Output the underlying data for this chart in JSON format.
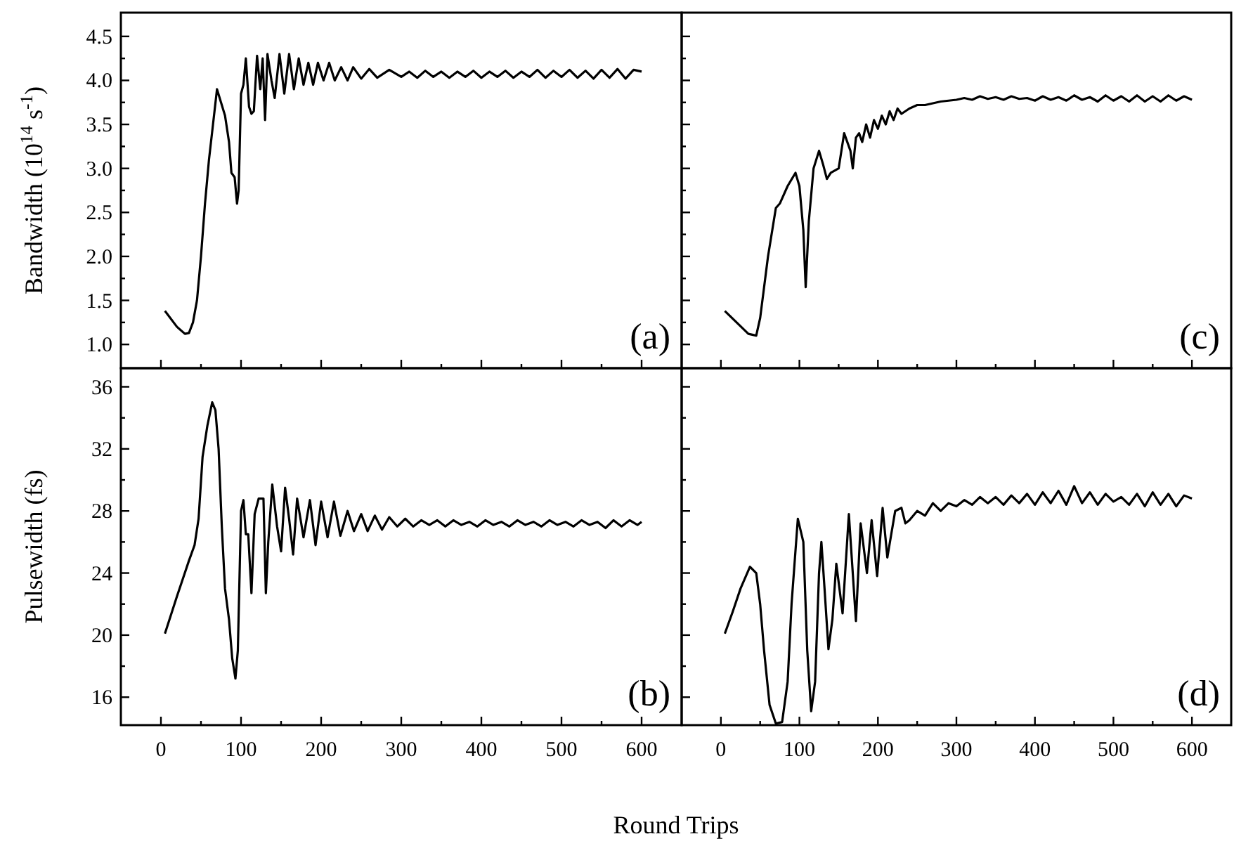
{
  "chart_data": [
    {
      "type": "line",
      "ylabel": "Bandwidth (10$^{14}$ s$^{-1}$)",
      "annotations": [
        "(a)"
      ],
      "tick_labels": "y",
      "x": [
        5,
        20,
        30,
        35,
        40,
        45,
        50,
        55,
        60,
        65,
        70,
        75,
        80,
        85,
        88,
        92,
        95,
        97,
        100,
        103,
        106,
        110,
        113,
        116,
        120,
        124,
        127,
        130,
        133,
        138,
        142,
        148,
        154,
        160,
        166,
        172,
        178,
        184,
        190,
        196,
        203,
        210,
        217,
        225,
        233,
        240,
        250,
        260,
        270,
        285,
        300,
        310,
        320,
        330,
        340,
        350,
        360,
        370,
        380,
        390,
        400,
        410,
        420,
        430,
        440,
        450,
        460,
        470,
        480,
        490,
        500,
        510,
        520,
        530,
        540,
        550,
        560,
        570,
        580,
        590,
        600
      ],
      "series": [
        {
          "color": "#000000",
          "values": [
            1.38,
            1.2,
            1.12,
            1.13,
            1.25,
            1.5,
            2.0,
            2.6,
            3.1,
            3.5,
            3.9,
            3.75,
            3.6,
            3.3,
            2.95,
            2.9,
            2.6,
            2.75,
            3.85,
            3.95,
            4.25,
            3.7,
            3.62,
            3.65,
            4.28,
            3.9,
            4.25,
            3.55,
            4.3,
            4.0,
            3.8,
            4.3,
            3.85,
            4.3,
            3.9,
            4.25,
            3.95,
            4.2,
            3.95,
            4.2,
            4.0,
            4.2,
            4.0,
            4.15,
            4.0,
            4.15,
            4.02,
            4.13,
            4.03,
            4.12,
            4.04,
            4.1,
            4.03,
            4.11,
            4.04,
            4.1,
            4.03,
            4.1,
            4.04,
            4.11,
            4.03,
            4.1,
            4.04,
            4.11,
            4.03,
            4.1,
            4.04,
            4.12,
            4.03,
            4.11,
            4.04,
            4.12,
            4.03,
            4.11,
            4.02,
            4.12,
            4.03,
            4.13,
            4.02,
            4.12,
            4.1
          ]
        }
      ],
      "xlim": [
        -50,
        650
      ],
      "xticks": [
        0,
        {
          "value": 50,
          "label": null
        },
        100,
        {
          "value": 150,
          "label": null
        },
        200,
        {
          "value": 250,
          "label": null
        },
        300,
        {
          "value": 350,
          "label": null
        },
        400,
        {
          "value": 450,
          "label": null
        },
        500,
        {
          "value": 550,
          "label": null
        },
        600
      ],
      "ylim": [
        0.73,
        4.77
      ],
      "yticks": [
        {
          "value": 1,
          "label": "1.0"
        },
        {
          "value": 1.25,
          "label": null
        },
        {
          "value": 1.5,
          "label": "1.5"
        },
        {
          "value": 1.75,
          "label": null
        },
        {
          "value": 2,
          "label": "2.0"
        },
        {
          "value": 2.25,
          "label": null
        },
        {
          "value": 2.5,
          "label": "2.5"
        },
        {
          "value": 2.75,
          "label": null
        },
        {
          "value": 3,
          "label": "3.0"
        },
        {
          "value": 3.25,
          "label": null
        },
        {
          "value": 3.5,
          "label": "3.5"
        },
        {
          "value": 3.75,
          "label": null
        },
        {
          "value": 4,
          "label": "4.0"
        },
        {
          "value": 4.25,
          "label": null
        },
        {
          "value": 4.5,
          "label": "4.5"
        }
      ]
    },
    {
      "type": "line",
      "annotations": [
        "(c)"
      ],
      "tick_labels": false,
      "x": [
        5,
        20,
        35,
        45,
        50,
        60,
        70,
        75,
        85,
        95,
        100,
        105,
        108,
        112,
        118,
        125,
        130,
        135,
        140,
        150,
        157,
        165,
        168,
        172,
        176,
        180,
        185,
        190,
        195,
        200,
        205,
        210,
        215,
        220,
        225,
        230,
        240,
        250,
        260,
        280,
        300,
        310,
        320,
        330,
        340,
        350,
        360,
        370,
        380,
        390,
        400,
        410,
        420,
        430,
        440,
        450,
        460,
        470,
        480,
        490,
        500,
        510,
        520,
        530,
        540,
        550,
        560,
        570,
        580,
        590,
        600
      ],
      "series": [
        {
          "color": "#000000",
          "values": [
            1.38,
            1.25,
            1.12,
            1.1,
            1.3,
            2.0,
            2.55,
            2.6,
            2.8,
            2.95,
            2.8,
            2.3,
            1.65,
            2.4,
            3.0,
            3.2,
            3.05,
            2.88,
            2.95,
            3.0,
            3.4,
            3.2,
            3.0,
            3.35,
            3.4,
            3.3,
            3.5,
            3.35,
            3.55,
            3.45,
            3.6,
            3.5,
            3.65,
            3.55,
            3.68,
            3.62,
            3.68,
            3.72,
            3.72,
            3.76,
            3.78,
            3.8,
            3.78,
            3.82,
            3.79,
            3.81,
            3.78,
            3.82,
            3.79,
            3.8,
            3.77,
            3.82,
            3.78,
            3.81,
            3.77,
            3.83,
            3.78,
            3.81,
            3.76,
            3.83,
            3.77,
            3.82,
            3.76,
            3.83,
            3.76,
            3.82,
            3.76,
            3.83,
            3.77,
            3.82,
            3.78
          ]
        }
      ],
      "xlim": [
        -50,
        650
      ],
      "xticks": [
        0,
        {
          "value": 50,
          "label": null
        },
        100,
        {
          "value": 150,
          "label": null
        },
        200,
        {
          "value": 250,
          "label": null
        },
        300,
        {
          "value": 350,
          "label": null
        },
        400,
        {
          "value": 450,
          "label": null
        },
        500,
        {
          "value": 550,
          "label": null
        },
        600
      ],
      "ylim": [
        0.73,
        4.77
      ],
      "yticks": [
        1,
        {
          "value": 1.25,
          "label": null
        },
        1.5,
        {
          "value": 1.75,
          "label": null
        },
        2,
        {
          "value": 2.25,
          "label": null
        },
        2.5,
        {
          "value": 2.75,
          "label": null
        },
        3,
        {
          "value": 3.25,
          "label": null
        },
        3.5,
        {
          "value": 3.75,
          "label": null
        },
        4,
        {
          "value": 4.25,
          "label": null
        },
        4.5
      ]
    },
    {
      "type": "line",
      "ylabel": "Pulsewidth (fs)",
      "xlabel": "Round Trips",
      "annotations": [
        "(b)"
      ],
      "x": [
        5,
        20,
        35,
        42,
        47,
        52,
        58,
        64,
        68,
        72,
        76,
        80,
        85,
        89,
        93,
        96,
        100,
        103,
        106,
        109,
        113,
        117,
        122,
        128,
        131,
        134,
        139,
        145,
        150,
        155,
        160,
        165,
        170,
        178,
        186,
        193,
        200,
        208,
        216,
        224,
        233,
        241,
        250,
        258,
        267,
        276,
        285,
        295,
        305,
        315,
        325,
        335,
        345,
        355,
        365,
        375,
        385,
        395,
        405,
        415,
        425,
        435,
        445,
        455,
        465,
        475,
        485,
        495,
        505,
        515,
        525,
        535,
        545,
        555,
        565,
        575,
        585,
        595,
        600
      ],
      "series": [
        {
          "color": "#000000",
          "values": [
            20.1,
            22.5,
            24.8,
            25.8,
            27.5,
            31.5,
            33.5,
            35.0,
            34.5,
            32,
            27,
            23,
            21,
            18.5,
            17.2,
            19,
            28,
            28.7,
            26.5,
            26.5,
            22.7,
            27.8,
            28.8,
            28.8,
            22.7,
            26,
            29.7,
            27,
            25.4,
            29.5,
            27.5,
            25.2,
            28.8,
            26.3,
            28.7,
            25.8,
            28.6,
            26.3,
            28.6,
            26.4,
            28.0,
            26.7,
            27.8,
            26.7,
            27.7,
            26.8,
            27.6,
            27.0,
            27.5,
            27.0,
            27.4,
            27.1,
            27.4,
            27.0,
            27.4,
            27.1,
            27.3,
            27.0,
            27.4,
            27.1,
            27.3,
            27.0,
            27.4,
            27.1,
            27.3,
            27.0,
            27.4,
            27.1,
            27.3,
            27.0,
            27.4,
            27.1,
            27.3,
            26.9,
            27.4,
            27.0,
            27.4,
            27.1,
            27.3
          ]
        }
      ],
      "xlim": [
        -50,
        650
      ],
      "xticks": [
        0,
        {
          "value": 50,
          "label": null
        },
        100,
        {
          "value": 150,
          "label": null
        },
        200,
        {
          "value": 250,
          "label": null
        },
        300,
        {
          "value": 350,
          "label": null
        },
        400,
        {
          "value": 450,
          "label": null
        },
        500,
        {
          "value": 550,
          "label": null
        },
        600
      ],
      "ylim": [
        14.2,
        37.2
      ],
      "yticks": [
        16,
        {
          "value": 18,
          "label": null
        },
        20,
        {
          "value": 22,
          "label": null
        },
        24,
        {
          "value": 26,
          "label": null
        },
        28,
        {
          "value": 30,
          "label": null
        },
        32,
        {
          "value": 34,
          "label": null
        },
        36
      ]
    },
    {
      "type": "line",
      "annotations": [
        "(d)"
      ],
      "tick_labels": "x",
      "x": [
        5,
        15,
        25,
        37,
        45,
        50,
        55,
        62,
        70,
        78,
        85,
        90,
        98,
        105,
        110,
        115,
        120,
        125,
        128,
        132,
        137,
        142,
        147,
        155,
        163,
        172,
        178,
        186,
        192,
        199,
        206,
        212,
        222,
        230,
        235,
        240,
        250,
        260,
        270,
        280,
        290,
        300,
        310,
        320,
        330,
        340,
        350,
        360,
        370,
        380,
        390,
        400,
        410,
        420,
        430,
        440,
        450,
        460,
        470,
        480,
        490,
        500,
        510,
        520,
        530,
        540,
        550,
        560,
        570,
        580,
        590,
        600
      ],
      "series": [
        {
          "color": "#000000",
          "values": [
            20.1,
            21.5,
            23,
            24.4,
            24,
            22,
            19,
            15.5,
            14.3,
            14.4,
            17,
            22,
            27.5,
            26,
            19,
            15.1,
            17,
            24,
            26,
            23,
            19.1,
            21,
            24.6,
            21.4,
            27.8,
            20.9,
            27.2,
            24.0,
            27.4,
            23.8,
            28.2,
            25.0,
            28.0,
            28.2,
            27.2,
            27.4,
            28.0,
            27.7,
            28.5,
            28.0,
            28.5,
            28.3,
            28.7,
            28.4,
            28.9,
            28.5,
            28.9,
            28.4,
            29.0,
            28.5,
            29.1,
            28.4,
            29.2,
            28.5,
            29.3,
            28.4,
            29.6,
            28.5,
            29.2,
            28.4,
            29.1,
            28.6,
            28.9,
            28.4,
            29.1,
            28.3,
            29.2,
            28.4,
            29.1,
            28.3,
            29.0,
            28.8
          ]
        }
      ],
      "xlim": [
        -50,
        650
      ],
      "xticks": [
        0,
        {
          "value": 50,
          "label": null
        },
        100,
        {
          "value": 150,
          "label": null
        },
        200,
        {
          "value": 250,
          "label": null
        },
        300,
        {
          "value": 350,
          "label": null
        },
        400,
        {
          "value": 450,
          "label": null
        },
        500,
        {
          "value": 550,
          "label": null
        },
        600
      ],
      "ylim": [
        14.2,
        37.2
      ],
      "yticks": [
        16,
        {
          "value": 18,
          "label": null
        },
        20,
        {
          "value": 22,
          "label": null
        },
        24,
        {
          "value": 26,
          "label": null
        },
        28,
        {
          "value": 30,
          "label": null
        },
        32,
        {
          "value": 34,
          "label": null
        },
        36
      ]
    }
  ]
}
